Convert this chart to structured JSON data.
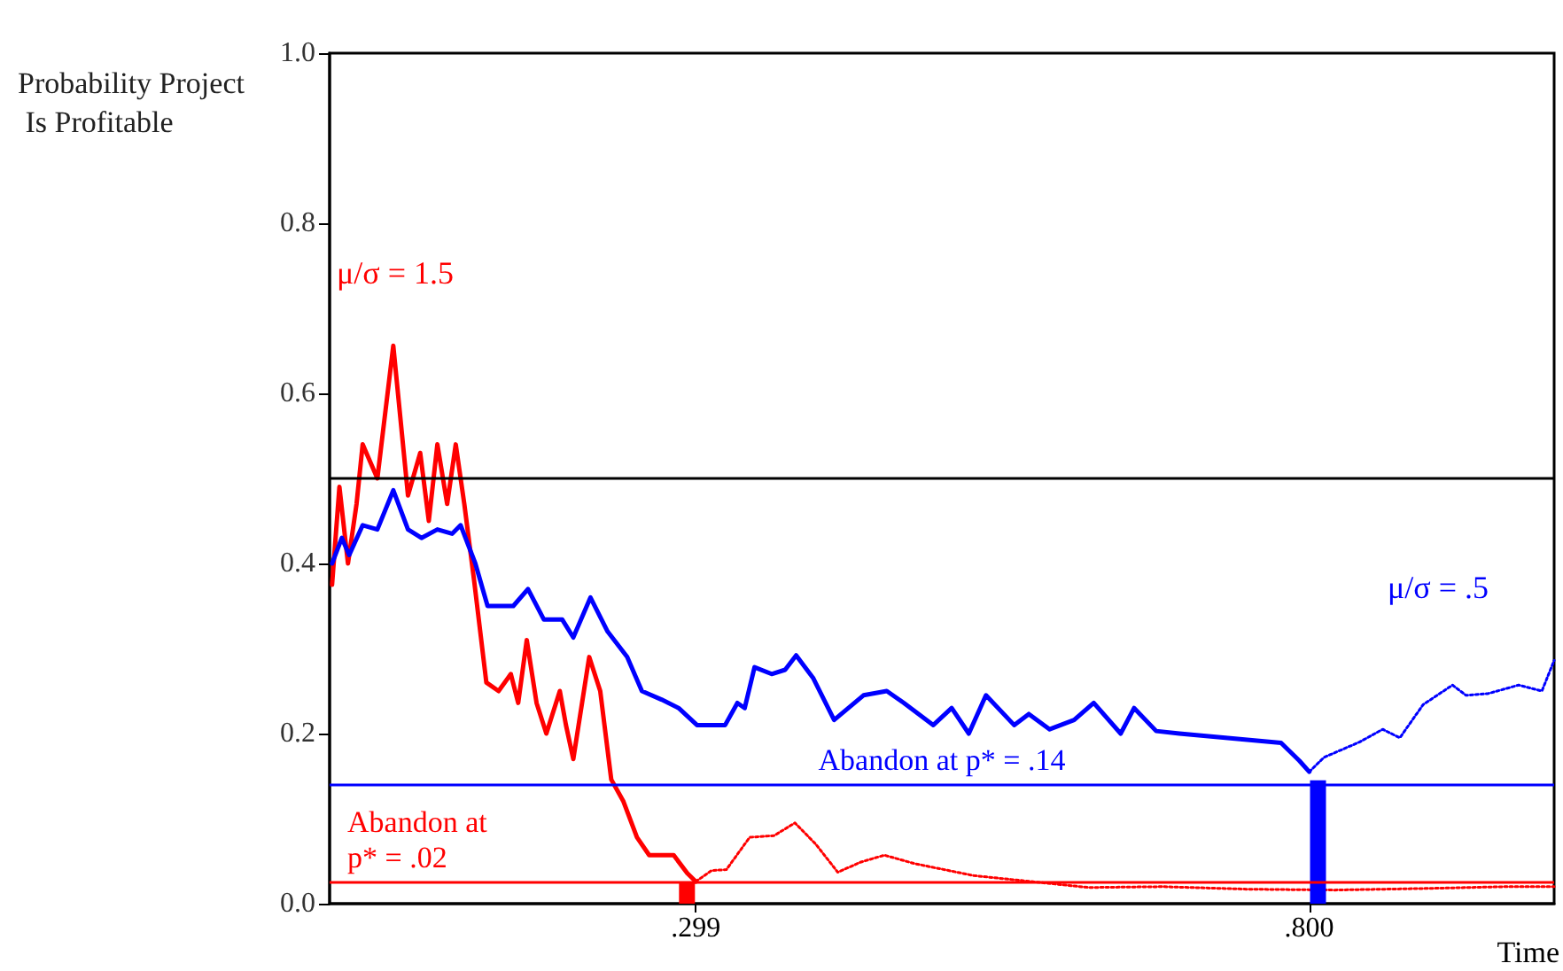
{
  "chart_data": {
    "type": "line",
    "xlabel": "Time",
    "ylabel": "Probability Project Is Profitable",
    "xlim": [
      0,
      1
    ],
    "ylim": [
      0,
      1
    ],
    "xticks": [
      {
        "value": 0.299,
        "label": ".299"
      },
      {
        "value": 0.8,
        "label": ".800"
      }
    ],
    "yticks": [
      {
        "value": 0,
        "label": "0.0"
      },
      {
        "value": 0.2,
        "label": "0.2"
      },
      {
        "value": 0.4,
        "label": "0.4"
      },
      {
        "value": 0.6,
        "label": "0.6"
      },
      {
        "value": 0.8,
        "label": "0.8"
      },
      {
        "value": 1,
        "label": "1.0"
      }
    ],
    "grid": false,
    "marker": "none",
    "legend": false,
    "series": [
      {
        "name": "μ/σ = 1.5",
        "color": "#ff0000",
        "line_style": "solid",
        "x": [
          0.002,
          0.008,
          0.015,
          0.022,
          0.027,
          0.039,
          0.052,
          0.064,
          0.074,
          0.081,
          0.088,
          0.096,
          0.103,
          0.11,
          0.118,
          0.128,
          0.138,
          0.148,
          0.154,
          0.161,
          0.169,
          0.177,
          0.188,
          0.193,
          0.199,
          0.212,
          0.221,
          0.23,
          0.24,
          0.251,
          0.261,
          0.281,
          0.292,
          0.299
        ],
        "values": [
          0.375,
          0.49,
          0.4,
          0.47,
          0.54,
          0.5,
          0.656,
          0.48,
          0.53,
          0.45,
          0.54,
          0.47,
          0.54,
          0.47,
          0.38,
          0.26,
          0.25,
          0.27,
          0.236,
          0.31,
          0.236,
          0.2,
          0.25,
          0.21,
          0.17,
          0.29,
          0.25,
          0.146,
          0.12,
          0.078,
          0.057,
          0.057,
          0.036,
          0.026
        ]
      },
      {
        "color": "#ff0000",
        "line_style": "dotted",
        "x": [
          0.299,
          0.312,
          0.324,
          0.343,
          0.363,
          0.38,
          0.397,
          0.415,
          0.434,
          0.453,
          0.478,
          0.526,
          0.573,
          0.62,
          0.68,
          0.75,
          0.82,
          0.9,
          0.96,
          1.0
        ],
        "values": [
          0.026,
          0.039,
          0.04,
          0.078,
          0.08,
          0.095,
          0.07,
          0.037,
          0.049,
          0.057,
          0.047,
          0.033,
          0.026,
          0.019,
          0.02,
          0.017,
          0.016,
          0.018,
          0.02,
          0.02
        ]
      },
      {
        "color": "#0000ff",
        "line_style": "solid",
        "x": [
          0.002,
          0.01,
          0.016,
          0.027,
          0.039,
          0.052,
          0.064,
          0.075,
          0.088,
          0.1,
          0.107,
          0.119,
          0.129,
          0.15,
          0.162,
          0.175,
          0.19,
          0.199,
          0.213,
          0.227,
          0.243,
          0.255,
          0.271,
          0.285,
          0.3,
          0.323,
          0.333,
          0.339,
          0.347,
          0.361,
          0.372,
          0.381,
          0.395,
          0.412,
          0.436,
          0.455,
          0.469,
          0.493,
          0.508,
          0.522,
          0.536,
          0.559,
          0.571,
          0.588,
          0.608,
          0.624,
          0.646,
          0.657,
          0.675,
          0.694,
          0.777,
          0.792,
          0.8
        ],
        "values": [
          0.4,
          0.43,
          0.41,
          0.445,
          0.44,
          0.486,
          0.44,
          0.43,
          0.44,
          0.435,
          0.445,
          0.4,
          0.35,
          0.35,
          0.37,
          0.334,
          0.334,
          0.313,
          0.36,
          0.32,
          0.29,
          0.25,
          0.24,
          0.23,
          0.21,
          0.21,
          0.236,
          0.23,
          0.278,
          0.27,
          0.275,
          0.292,
          0.265,
          0.216,
          0.245,
          0.25,
          0.236,
          0.21,
          0.23,
          0.2,
          0.245,
          0.21,
          0.223,
          0.205,
          0.216,
          0.236,
          0.2,
          0.23,
          0.203,
          0.2,
          0.189,
          0.168,
          0.155
        ]
      },
      {
        "name": "μ/σ = .5",
        "color": "#0000ff",
        "line_style": "dotted",
        "x": [
          0.8,
          0.812,
          0.841,
          0.86,
          0.874,
          0.893,
          0.917,
          0.928,
          0.946,
          0.971,
          0.99,
          1.0
        ],
        "values": [
          0.155,
          0.172,
          0.19,
          0.205,
          0.195,
          0.234,
          0.257,
          0.245,
          0.247,
          0.257,
          0.25,
          0.286
        ]
      },
      {
        "type": "bar",
        "color": "#ff0000",
        "x": [
          0.299
        ],
        "values": [
          0.025
        ]
      },
      {
        "type": "bar",
        "color": "#0000ff",
        "x": [
          0.8
        ],
        "values": [
          0.145
        ]
      }
    ],
    "ref_lines": [
      {
        "axis": "y",
        "value": 0.5,
        "color": "#000000"
      },
      {
        "axis": "y",
        "value": 0.14,
        "label": "Abandon at p* = .14",
        "color": "#0000ff"
      },
      {
        "axis": "y",
        "value": 0.025,
        "label": "Abandon at\np* = .02",
        "color": "#ff0000"
      }
    ]
  }
}
